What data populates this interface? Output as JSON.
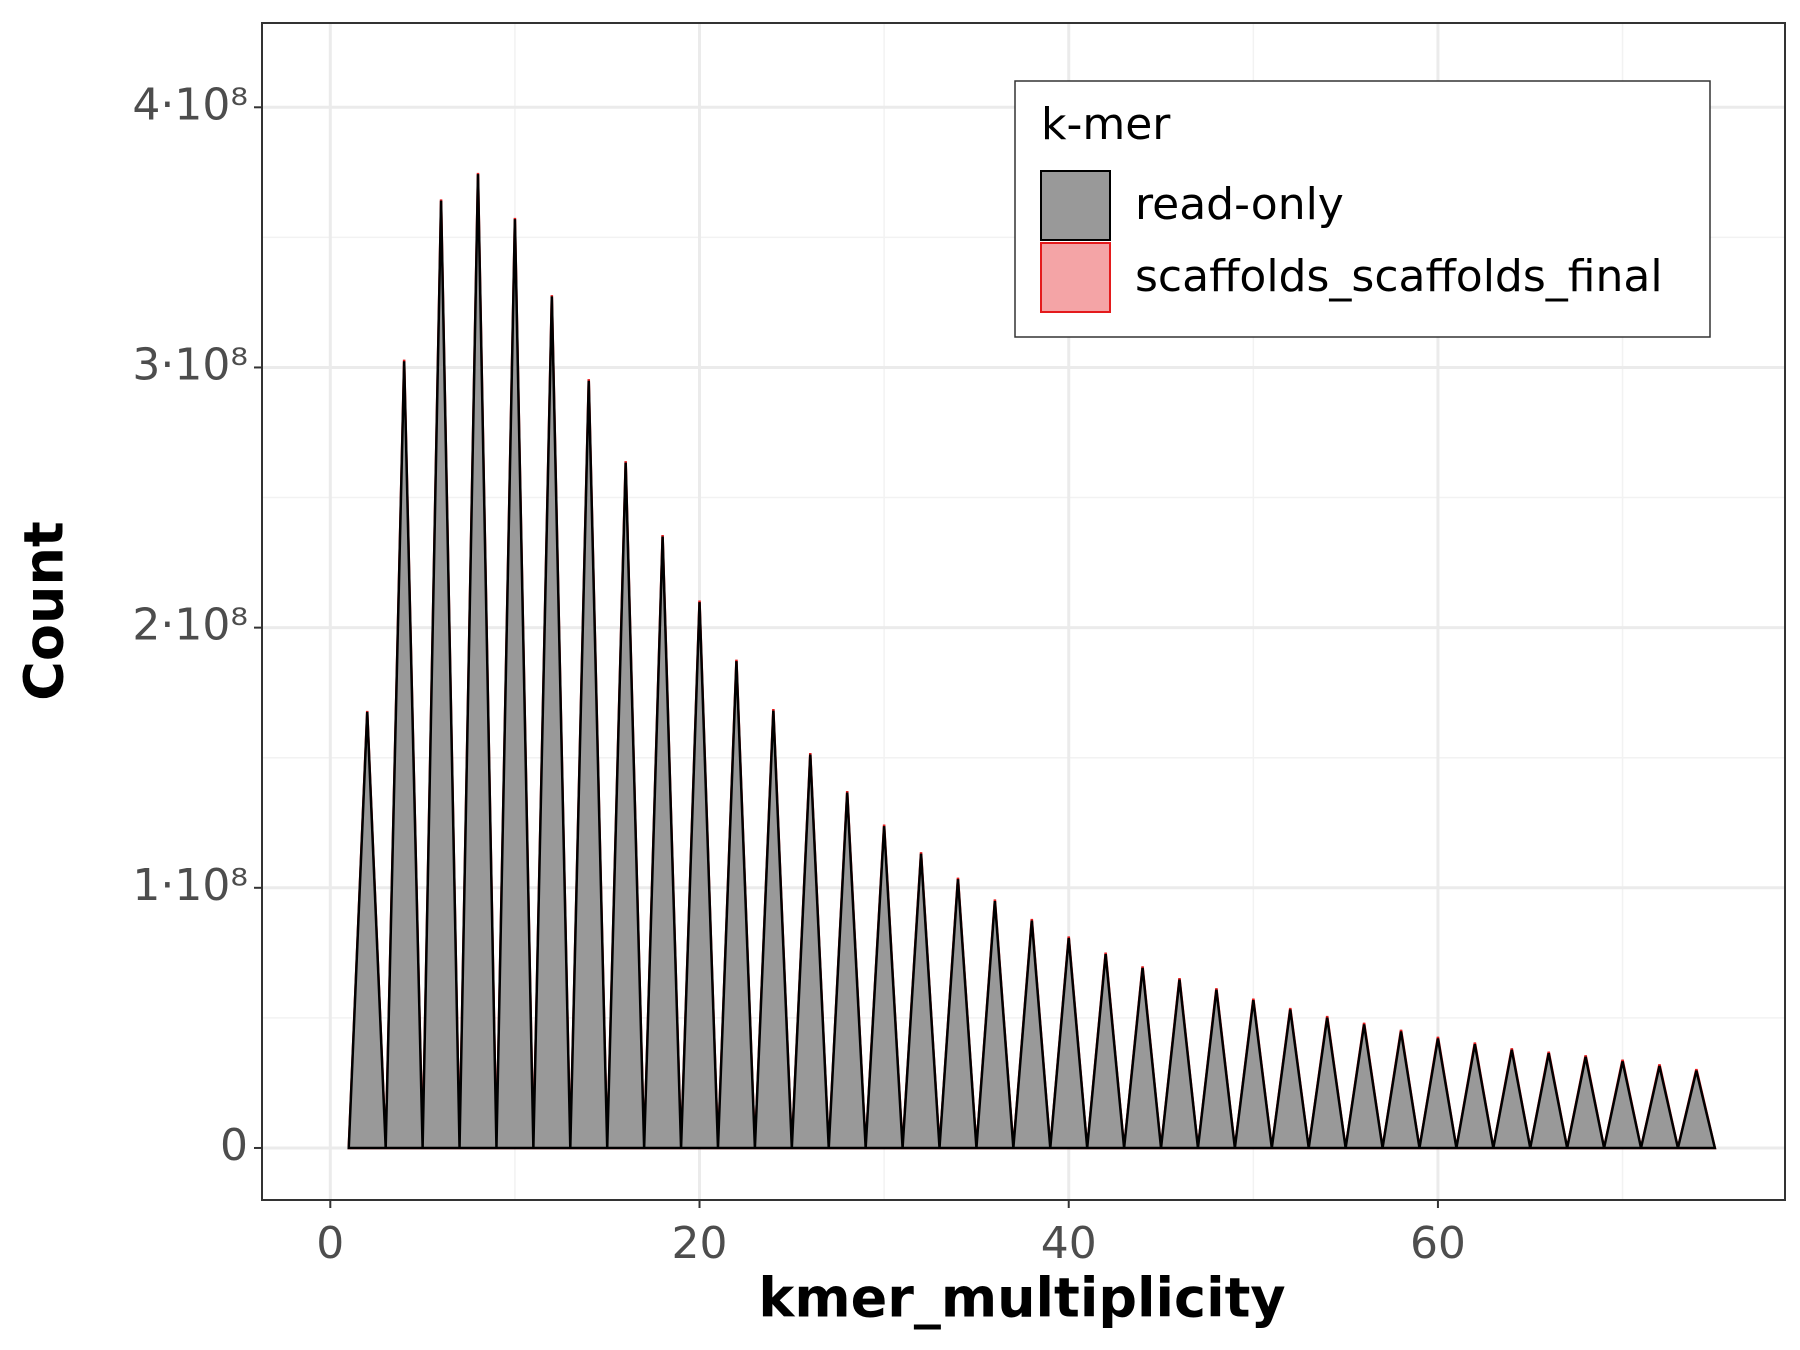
{
  "chart_data": {
    "type": "area",
    "x_label": "kmer_multiplicity",
    "y_label": "Count",
    "legend_title": "k-mer",
    "legend": "top-right",
    "grid": true,
    "xlim": [
      -3.7,
      78.8
    ],
    "ylim": [
      -20000000,
      432400000
    ],
    "xticks": [
      0,
      20,
      40,
      60
    ],
    "yticks": [
      0,
      {
        "value": 100000000,
        "label": "1·10⁸"
      },
      {
        "value": 200000000,
        "label": "2·10⁸"
      },
      {
        "value": 300000000,
        "label": "3·10⁸"
      },
      {
        "value": 400000000,
        "label": "4·10⁸"
      }
    ],
    "x": [
      1,
      2,
      3,
      4,
      5,
      6,
      7,
      8,
      9,
      10,
      11,
      12,
      13,
      14,
      15,
      16,
      17,
      18,
      19,
      20,
      21,
      22,
      23,
      24,
      25,
      26,
      27,
      28,
      29,
      30,
      31,
      32,
      33,
      34,
      35,
      36,
      37,
      38,
      39,
      40,
      41,
      42,
      43,
      44,
      45,
      46,
      47,
      48,
      49,
      50,
      51,
      52,
      53,
      54,
      55,
      56,
      57,
      58,
      59,
      60,
      61,
      62,
      63,
      64,
      65,
      66,
      67,
      68,
      69,
      70,
      71,
      72,
      73,
      74,
      75
    ],
    "series": [
      {
        "name": "read-only",
        "color": "#000000",
        "fill": "#999999",
        "values": [
          0,
          167600000,
          0,
          302400000,
          0,
          364100000,
          0,
          374300000,
          0,
          357000000,
          0,
          327300000,
          0,
          294900000,
          0,
          263400000,
          0,
          235000000,
          0,
          209800000,
          0,
          187100000,
          0,
          168100000,
          0,
          151200000,
          0,
          136600000,
          0,
          123700000,
          0,
          113100000,
          0,
          103300000,
          0,
          94900000,
          0,
          87400000,
          0,
          80700000,
          0,
          74500000,
          0,
          69200000,
          0,
          64700000,
          0,
          60800000,
          0,
          56800000,
          0,
          53200000,
          0,
          50100000,
          0,
          47500000,
          0,
          44800000,
          0,
          42100000,
          0,
          39900000,
          0,
          37700000,
          0,
          36400000,
          0,
          35000000,
          0,
          33300000,
          0,
          31500000,
          0,
          29700000,
          0
        ]
      },
      {
        "name": "scaffolds_scaffolds_final",
        "color": "#e41a1c",
        "fill": "#f4a4a6",
        "values": [
          0,
          168000000,
          0,
          303000000,
          0,
          364600000,
          0,
          374800000,
          0,
          357500000,
          0,
          327800000,
          0,
          295500000,
          0,
          264000000,
          0,
          235600000,
          0,
          210400000,
          0,
          187700000,
          0,
          168700000,
          0,
          151800000,
          0,
          137200000,
          0,
          124300000,
          0,
          113700000,
          0,
          103900000,
          0,
          95500000,
          0,
          88000000,
          0,
          81300000,
          0,
          75100000,
          0,
          69800000,
          0,
          65300000,
          0,
          61400000,
          0,
          57400000,
          0,
          53800000,
          0,
          50700000,
          0,
          48100000,
          0,
          45400000,
          0,
          42700000,
          0,
          40500000,
          0,
          38300000,
          0,
          37000000,
          0,
          35600000,
          0,
          33900000,
          0,
          32100000,
          0,
          30300000,
          0
        ]
      }
    ]
  }
}
